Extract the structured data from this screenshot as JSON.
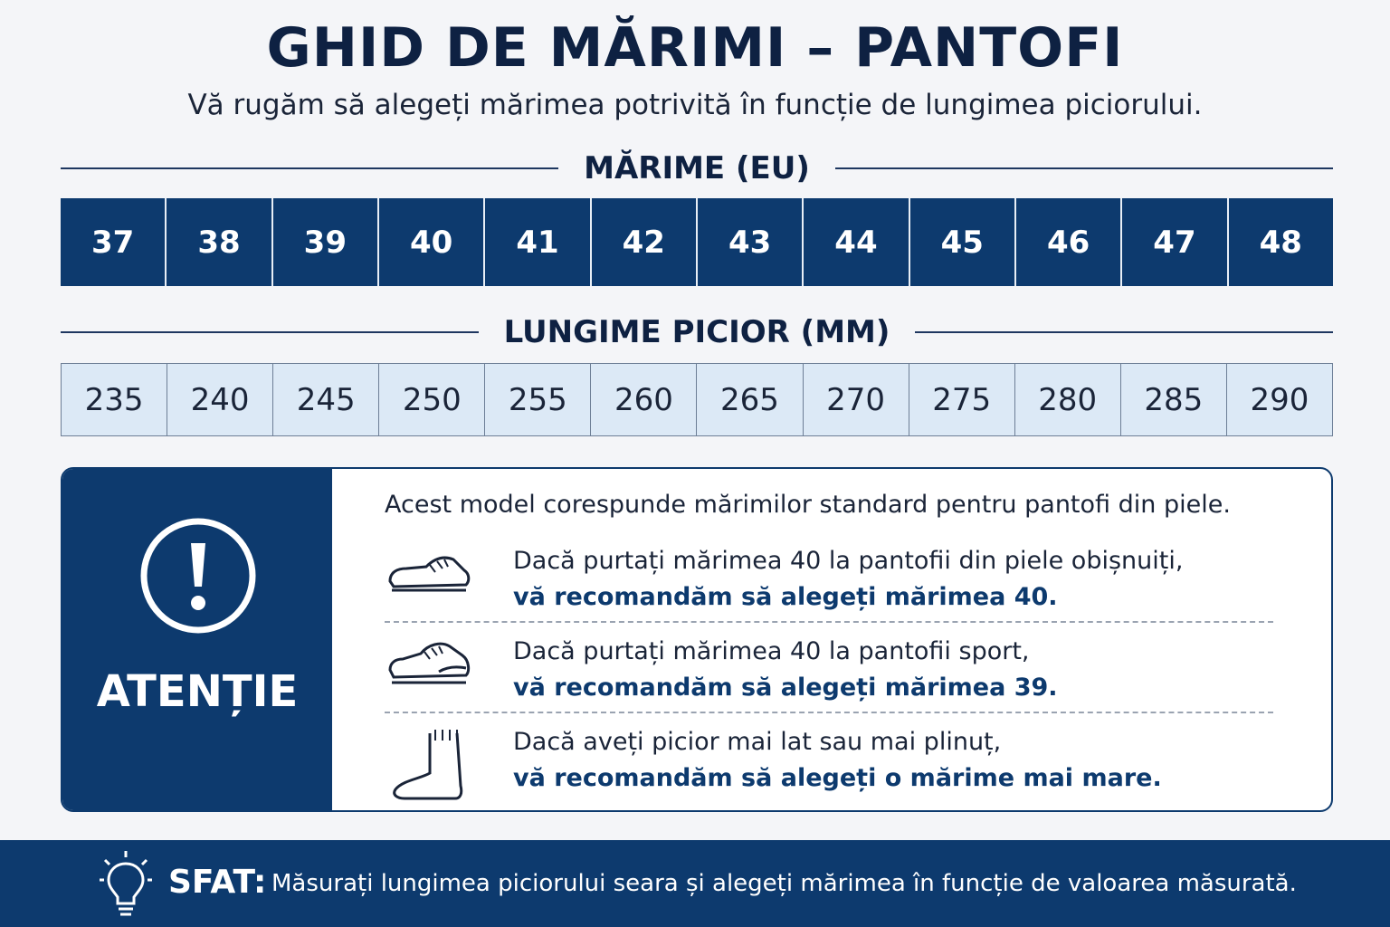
{
  "header": {
    "title": "GHID DE MĂRIMI – PANTOFI",
    "subtitle": "Vă rugăm să alegeți mărimea potrivită în funcție de lungimea piciorului."
  },
  "size_table": {
    "eu_heading": "MĂRIME (EU)",
    "eu_sizes": [
      37,
      38,
      39,
      40,
      41,
      42,
      43,
      44,
      45,
      46,
      47,
      48
    ],
    "length_heading": "LUNGIME PICIOR (MM)",
    "lengths": [
      235,
      240,
      245,
      250,
      255,
      260,
      265,
      270,
      275,
      280,
      285,
      290
    ]
  },
  "notice": {
    "label": "ATENȚIE",
    "intro": "Acest model corespunde mărimilor standard pentru pantofi din piele.",
    "items": [
      {
        "text": "Dacă purtați mărimea 40 la pantofii din piele obișnuiți,",
        "recommendation": "vă recomandăm să alegeți mărimea 40."
      },
      {
        "text": "Dacă purtați mărimea 40 la pantofii sport,",
        "recommendation": "vă recomandăm să alegeți mărimea 39."
      },
      {
        "text": "Dacă aveți picior mai lat sau mai plinuț,",
        "recommendation": "vă recomandăm să alegeți o mărime mai mare."
      }
    ]
  },
  "tip": {
    "label": "SFAT:",
    "text": "Măsurați lungimea piciorului seara și alegeți mărimea în funcție de valoarea măsurată."
  }
}
